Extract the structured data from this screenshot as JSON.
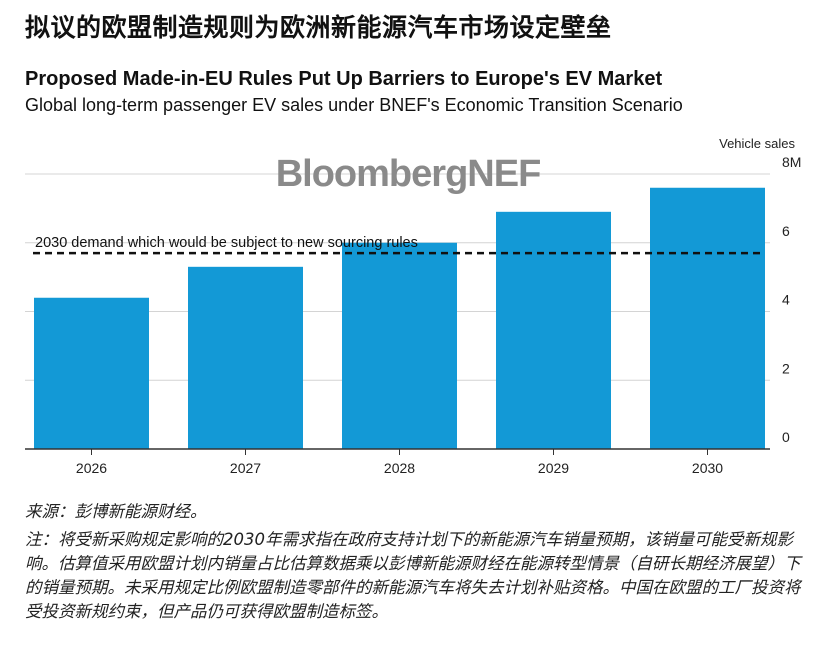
{
  "header": {
    "cn_title": "拟议的欧盟制造规则为欧洲新能源汽车市场设定壁垒"
  },
  "chart_data": {
    "type": "bar",
    "title": "Proposed Made-in-EU Rules Put Up Barriers to Europe's EV Market",
    "subtitle": "Global long-term passenger EV sales under BNEF's Economic Transition Scenario",
    "watermark": "BloombergNEF",
    "ylabel": "Vehicle sales",
    "categories": [
      "2026",
      "2027",
      "2028",
      "2029",
      "2030"
    ],
    "values": [
      4.4,
      5.3,
      6.0,
      6.9,
      7.6
    ],
    "unit": "M",
    "ylim": [
      0,
      8
    ],
    "yticks": [
      {
        "v": 0,
        "label": "0"
      },
      {
        "v": 2,
        "label": "2"
      },
      {
        "v": 4,
        "label": "4"
      },
      {
        "v": 6,
        "label": "6"
      },
      {
        "v": 8,
        "label": "8M"
      }
    ],
    "reference_line": {
      "value": 5.7,
      "label": "2030 demand which would be subject to new sourcing rules"
    },
    "bar_color": "#1399d6",
    "grid": true
  },
  "notes": {
    "source": "来源：彭博新能源财经。",
    "note": "注：将受新采购规定影响的2030年需求指在政府支持计划下的新能源汽车销量预期，该销量可能受新规影响。估算值采用欧盟计划内销量占比估算数据乘以彭博新能源财经在能源转型情景（自研长期经济展望）下的销量预期。未采用规定比例欧盟制造零部件的新能源汽车将失去计划补贴资格。中国在欧盟的工厂投资将受投资新规约束，但产品仍可获得欧盟制造标签。"
  }
}
